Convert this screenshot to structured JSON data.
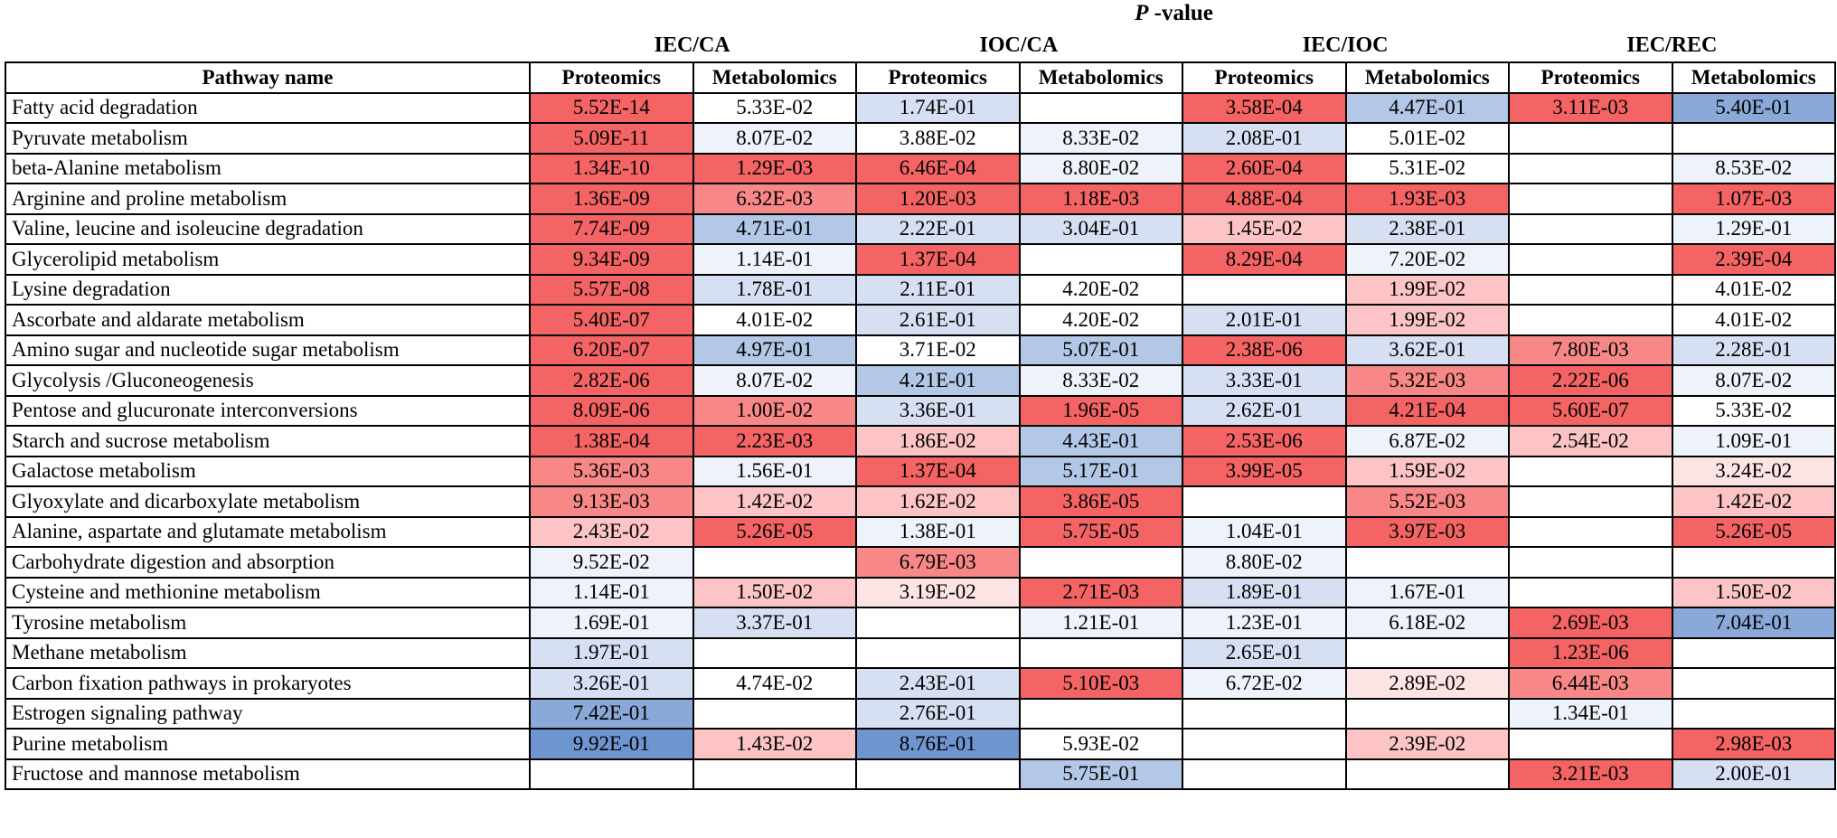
{
  "title_prefix": "P",
  "title_suffix": " -value",
  "groups": [
    "IEC/CA",
    "IOC/CA",
    "IEC/IOC",
    "IEC/REC"
  ],
  "header": {
    "pathway": "Pathway name",
    "subcols": [
      "Proteomics",
      "Metabolomics",
      "Proteomics",
      "Metabolomics",
      "Proteomics",
      "Metabolomics",
      "Proteomics",
      "Metabolomics"
    ]
  },
  "colors": {
    "red_strong": "#f46464",
    "red_medium": "#f88888",
    "red_light": "#fcc4c4",
    "red_faint": "#fde4e4",
    "white": "#ffffff",
    "blue_faint": "#eef2fa",
    "blue_light": "#d6e0f2",
    "blue_medium": "#b3c7e6",
    "blue_strong": "#8aa8d8",
    "blue_darker": "#6f95d0"
  },
  "rows": [
    {
      "name": "Fatty acid degradation",
      "cells": [
        [
          "5.52E-14",
          "red_strong"
        ],
        [
          "5.33E-02",
          "white"
        ],
        [
          "1.74E-01",
          "blue_light"
        ],
        [
          "",
          ""
        ],
        [
          "3.58E-04",
          "red_strong"
        ],
        [
          "4.47E-01",
          "blue_medium"
        ],
        [
          "3.11E-03",
          "red_strong"
        ],
        [
          "5.40E-01",
          "blue_strong"
        ]
      ]
    },
    {
      "name": "Pyruvate metabolism",
      "cells": [
        [
          "5.09E-11",
          "red_strong"
        ],
        [
          "8.07E-02",
          "blue_faint"
        ],
        [
          "3.88E-02",
          "white"
        ],
        [
          "8.33E-02",
          "blue_faint"
        ],
        [
          "2.08E-01",
          "blue_light"
        ],
        [
          "5.01E-02",
          "white"
        ],
        [
          "",
          ""
        ],
        [
          "",
          ""
        ]
      ]
    },
    {
      "name": "beta-Alanine metabolism",
      "cells": [
        [
          "1.34E-10",
          "red_strong"
        ],
        [
          "1.29E-03",
          "red_strong"
        ],
        [
          "6.46E-04",
          "red_strong"
        ],
        [
          "8.80E-02",
          "blue_faint"
        ],
        [
          "2.60E-04",
          "red_strong"
        ],
        [
          "5.31E-02",
          "white"
        ],
        [
          "",
          ""
        ],
        [
          "8.53E-02",
          "blue_faint"
        ]
      ]
    },
    {
      "name": "Arginine and proline metabolism",
      "cells": [
        [
          "1.36E-09",
          "red_strong"
        ],
        [
          "6.32E-03",
          "red_medium"
        ],
        [
          "1.20E-03",
          "red_strong"
        ],
        [
          "1.18E-03",
          "red_strong"
        ],
        [
          "4.88E-04",
          "red_strong"
        ],
        [
          "1.93E-03",
          "red_strong"
        ],
        [
          "",
          ""
        ],
        [
          "1.07E-03",
          "red_strong"
        ]
      ]
    },
    {
      "name": "Valine, leucine and isoleucine degradation",
      "cells": [
        [
          "7.74E-09",
          "red_strong"
        ],
        [
          "4.71E-01",
          "blue_medium"
        ],
        [
          "2.22E-01",
          "blue_light"
        ],
        [
          "3.04E-01",
          "blue_light"
        ],
        [
          "1.45E-02",
          "red_light"
        ],
        [
          "2.38E-01",
          "blue_light"
        ],
        [
          "",
          ""
        ],
        [
          "1.29E-01",
          "blue_faint"
        ]
      ]
    },
    {
      "name": "Glycerolipid metabolism",
      "cells": [
        [
          "9.34E-09",
          "red_strong"
        ],
        [
          "1.14E-01",
          "blue_faint"
        ],
        [
          "1.37E-04",
          "red_strong"
        ],
        [
          "",
          ""
        ],
        [
          "8.29E-04",
          "red_strong"
        ],
        [
          "7.20E-02",
          "blue_faint"
        ],
        [
          "",
          ""
        ],
        [
          "2.39E-04",
          "red_strong"
        ]
      ]
    },
    {
      "name": "Lysine degradation",
      "cells": [
        [
          "5.57E-08",
          "red_strong"
        ],
        [
          "1.78E-01",
          "blue_light"
        ],
        [
          "2.11E-01",
          "blue_light"
        ],
        [
          "4.20E-02",
          "white"
        ],
        [
          "",
          ""
        ],
        [
          "1.99E-02",
          "red_light"
        ],
        [
          "",
          ""
        ],
        [
          "4.01E-02",
          "white"
        ]
      ]
    },
    {
      "name": "Ascorbate and aldarate metabolism",
      "cells": [
        [
          "5.40E-07",
          "red_strong"
        ],
        [
          "4.01E-02",
          "white"
        ],
        [
          "2.61E-01",
          "blue_light"
        ],
        [
          "4.20E-02",
          "white"
        ],
        [
          "2.01E-01",
          "blue_light"
        ],
        [
          "1.99E-02",
          "red_light"
        ],
        [
          "",
          ""
        ],
        [
          "4.01E-02",
          "white"
        ]
      ]
    },
    {
      "name": "Amino sugar and nucleotide sugar metabolism",
      "cells": [
        [
          "6.20E-07",
          "red_strong"
        ],
        [
          "4.97E-01",
          "blue_medium"
        ],
        [
          "3.71E-02",
          "white"
        ],
        [
          "5.07E-01",
          "blue_medium"
        ],
        [
          "2.38E-06",
          "red_strong"
        ],
        [
          "3.62E-01",
          "blue_light"
        ],
        [
          "7.80E-03",
          "red_medium"
        ],
        [
          "2.28E-01",
          "blue_light"
        ]
      ]
    },
    {
      "name": "Glycolysis /Gluconeogenesis",
      "cells": [
        [
          "2.82E-06",
          "red_strong"
        ],
        [
          "8.07E-02",
          "blue_faint"
        ],
        [
          "4.21E-01",
          "blue_medium"
        ],
        [
          "8.33E-02",
          "blue_faint"
        ],
        [
          "3.33E-01",
          "blue_light"
        ],
        [
          "5.32E-03",
          "red_medium"
        ],
        [
          "2.22E-06",
          "red_strong"
        ],
        [
          "8.07E-02",
          "blue_faint"
        ]
      ]
    },
    {
      "name": "Pentose and glucuronate interconversions",
      "cells": [
        [
          "8.09E-06",
          "red_strong"
        ],
        [
          "1.00E-02",
          "red_medium"
        ],
        [
          "3.36E-01",
          "blue_light"
        ],
        [
          "1.96E-05",
          "red_strong"
        ],
        [
          "2.62E-01",
          "blue_light"
        ],
        [
          "4.21E-04",
          "red_strong"
        ],
        [
          "5.60E-07",
          "red_strong"
        ],
        [
          "5.33E-02",
          "white"
        ]
      ]
    },
    {
      "name": "Starch and sucrose metabolism",
      "cells": [
        [
          "1.38E-04",
          "red_strong"
        ],
        [
          "2.23E-03",
          "red_strong"
        ],
        [
          "1.86E-02",
          "red_light"
        ],
        [
          "4.43E-01",
          "blue_medium"
        ],
        [
          "2.53E-06",
          "red_strong"
        ],
        [
          "6.87E-02",
          "blue_faint"
        ],
        [
          "2.54E-02",
          "red_light"
        ],
        [
          "1.09E-01",
          "blue_faint"
        ]
      ]
    },
    {
      "name": "Galactose metabolism",
      "cells": [
        [
          "5.36E-03",
          "red_medium"
        ],
        [
          "1.56E-01",
          "blue_faint"
        ],
        [
          "1.37E-04",
          "red_strong"
        ],
        [
          "5.17E-01",
          "blue_medium"
        ],
        [
          "3.99E-05",
          "red_strong"
        ],
        [
          "1.59E-02",
          "red_light"
        ],
        [
          "",
          ""
        ],
        [
          "3.24E-02",
          "red_faint"
        ]
      ]
    },
    {
      "name": "Glyoxylate and dicarboxylate metabolism",
      "cells": [
        [
          "9.13E-03",
          "red_medium"
        ],
        [
          "1.42E-02",
          "red_light"
        ],
        [
          "1.62E-02",
          "red_light"
        ],
        [
          "3.86E-05",
          "red_strong"
        ],
        [
          "",
          ""
        ],
        [
          "5.52E-03",
          "red_medium"
        ],
        [
          "",
          ""
        ],
        [
          "1.42E-02",
          "red_light"
        ]
      ]
    },
    {
      "name": "Alanine, aspartate and glutamate metabolism",
      "cells": [
        [
          "2.43E-02",
          "red_light"
        ],
        [
          "5.26E-05",
          "red_strong"
        ],
        [
          "1.38E-01",
          "blue_faint"
        ],
        [
          "5.75E-05",
          "red_strong"
        ],
        [
          "1.04E-01",
          "blue_faint"
        ],
        [
          "3.97E-03",
          "red_strong"
        ],
        [
          "",
          ""
        ],
        [
          "5.26E-05",
          "red_strong"
        ]
      ]
    },
    {
      "name": "Carbohydrate digestion and absorption",
      "cells": [
        [
          "9.52E-02",
          "blue_faint"
        ],
        [
          "",
          ""
        ],
        [
          "6.79E-03",
          "red_medium"
        ],
        [
          "",
          ""
        ],
        [
          "8.80E-02",
          "blue_faint"
        ],
        [
          "",
          ""
        ],
        [
          "",
          ""
        ],
        [
          "",
          ""
        ]
      ]
    },
    {
      "name": "Cysteine and methionine metabolism",
      "cells": [
        [
          "1.14E-01",
          "blue_faint"
        ],
        [
          "1.50E-02",
          "red_light"
        ],
        [
          "3.19E-02",
          "red_faint"
        ],
        [
          "2.71E-03",
          "red_strong"
        ],
        [
          "1.89E-01",
          "blue_light"
        ],
        [
          "1.67E-01",
          "blue_faint"
        ],
        [
          "",
          ""
        ],
        [
          "1.50E-02",
          "red_light"
        ]
      ]
    },
    {
      "name": "Tyrosine metabolism",
      "cells": [
        [
          "1.69E-01",
          "blue_faint"
        ],
        [
          "3.37E-01",
          "blue_light"
        ],
        [
          "",
          ""
        ],
        [
          "1.21E-01",
          "blue_faint"
        ],
        [
          "1.23E-01",
          "blue_faint"
        ],
        [
          "6.18E-02",
          "blue_faint"
        ],
        [
          "2.69E-03",
          "red_strong"
        ],
        [
          "7.04E-01",
          "blue_strong"
        ]
      ]
    },
    {
      "name": "Methane metabolism",
      "cells": [
        [
          "1.97E-01",
          "blue_light"
        ],
        [
          "",
          ""
        ],
        [
          "",
          ""
        ],
        [
          "",
          ""
        ],
        [
          "2.65E-01",
          "blue_light"
        ],
        [
          "",
          ""
        ],
        [
          "1.23E-06",
          "red_strong"
        ],
        [
          "",
          ""
        ]
      ]
    },
    {
      "name": "Carbon fixation pathways in prokaryotes",
      "cells": [
        [
          "3.26E-01",
          "blue_light"
        ],
        [
          "4.74E-02",
          "white"
        ],
        [
          "2.43E-01",
          "blue_light"
        ],
        [
          "5.10E-03",
          "red_strong"
        ],
        [
          "6.72E-02",
          "blue_faint"
        ],
        [
          "2.89E-02",
          "red_faint"
        ],
        [
          "6.44E-03",
          "red_medium"
        ],
        [
          "",
          ""
        ]
      ]
    },
    {
      "name": "Estrogen signaling pathway",
      "cells": [
        [
          "7.42E-01",
          "blue_strong"
        ],
        [
          "",
          ""
        ],
        [
          "2.76E-01",
          "blue_light"
        ],
        [
          "",
          ""
        ],
        [
          "",
          ""
        ],
        [
          "",
          ""
        ],
        [
          "1.34E-01",
          "blue_faint"
        ],
        [
          "",
          ""
        ]
      ]
    },
    {
      "name": "Purine metabolism",
      "cells": [
        [
          "9.92E-01",
          "blue_darker"
        ],
        [
          "1.43E-02",
          "red_light"
        ],
        [
          "8.76E-01",
          "blue_darker"
        ],
        [
          "5.93E-02",
          "white"
        ],
        [
          "",
          ""
        ],
        [
          "2.39E-02",
          "red_light"
        ],
        [
          "",
          ""
        ],
        [
          "2.98E-03",
          "red_strong"
        ]
      ]
    },
    {
      "name": "Fructose and mannose metabolism",
      "cells": [
        [
          "",
          ""
        ],
        [
          "",
          ""
        ],
        [
          "",
          ""
        ],
        [
          "5.75E-01",
          "blue_medium"
        ],
        [
          "",
          ""
        ],
        [
          "",
          ""
        ],
        [
          "3.21E-03",
          "red_strong"
        ],
        [
          "2.00E-01",
          "blue_light"
        ]
      ]
    }
  ]
}
